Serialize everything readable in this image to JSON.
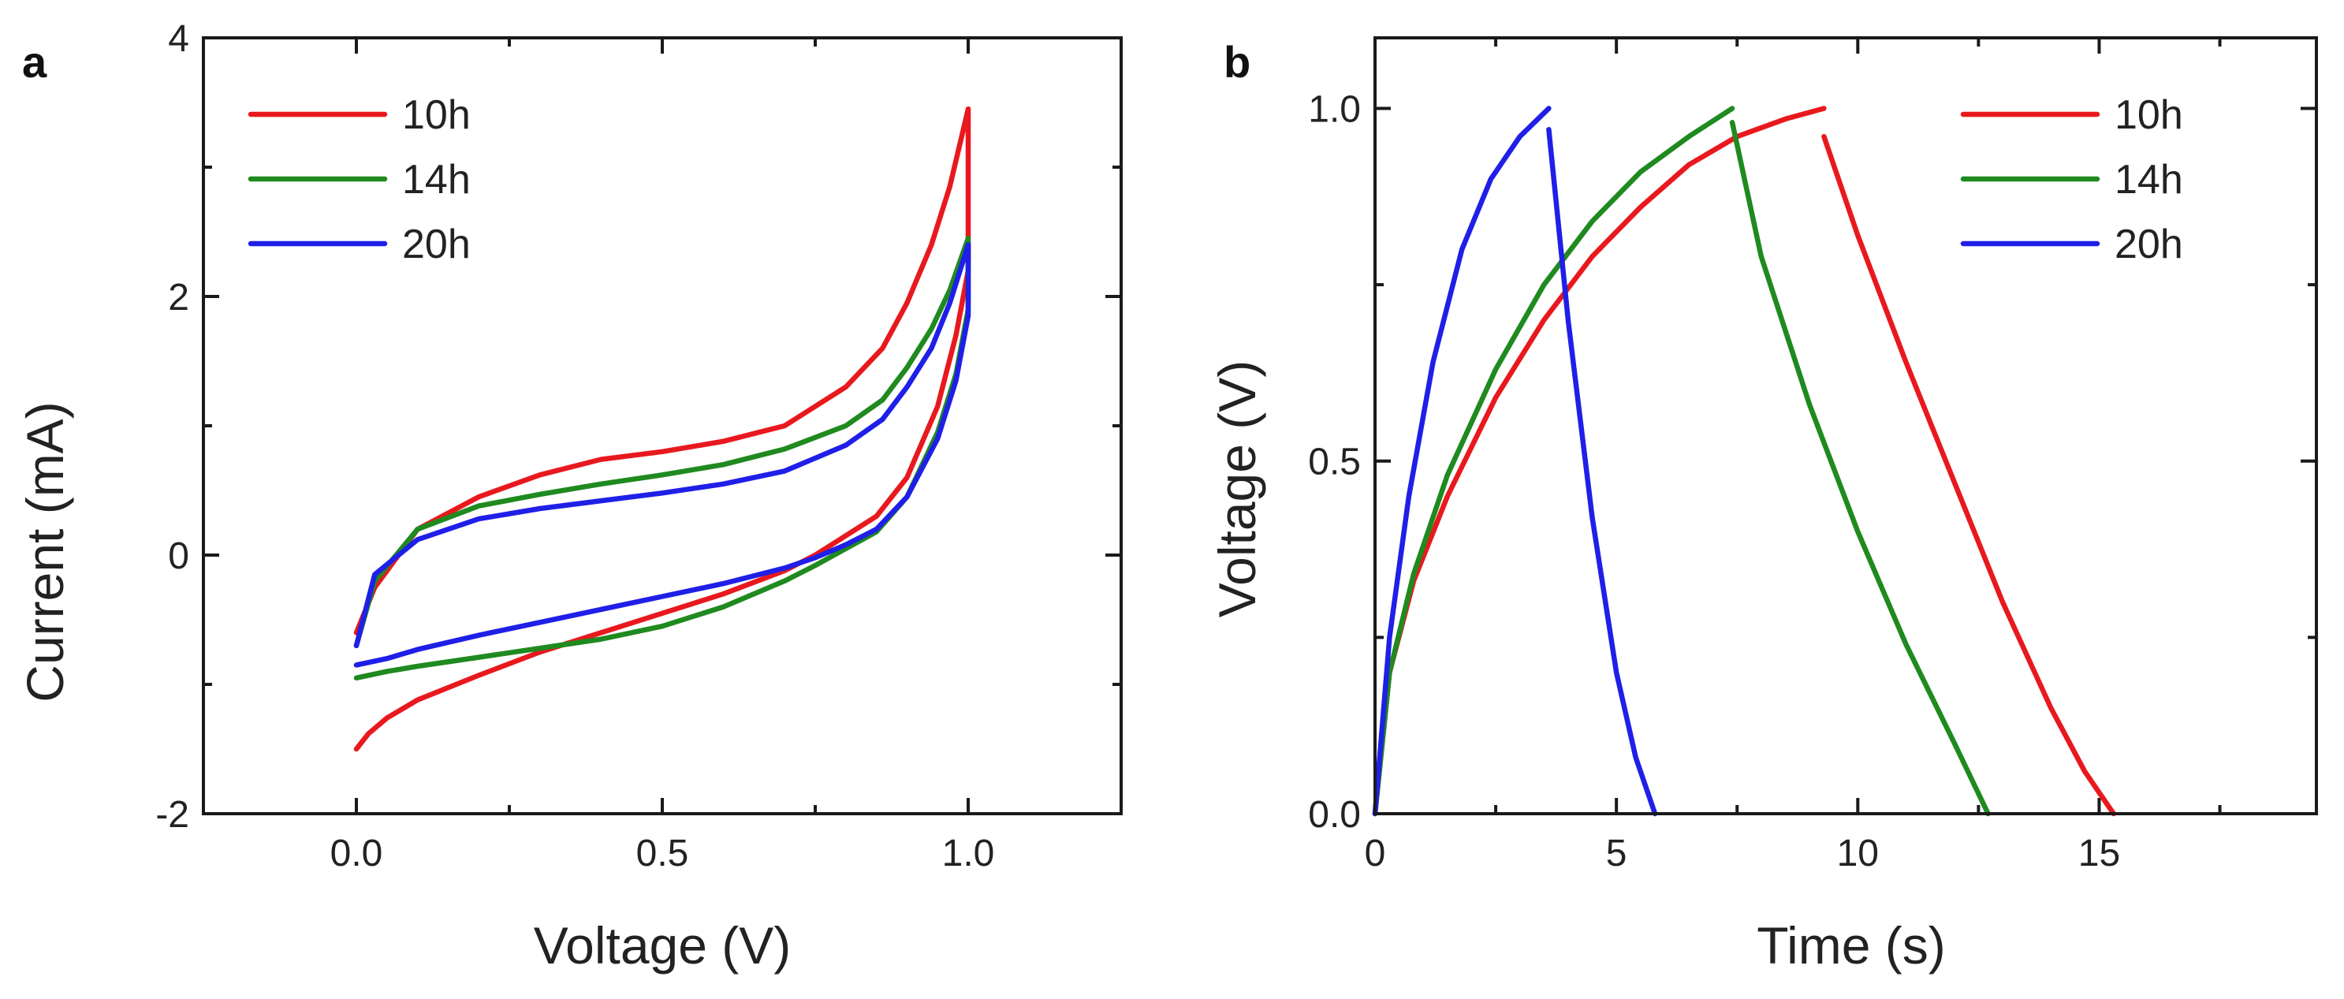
{
  "chart_data": [
    {
      "panel": "a",
      "type": "line",
      "title": "",
      "xlabel": "Voltage (V)",
      "ylabel": "Current (mA)",
      "xlim": [
        -0.25,
        1.25
      ],
      "ylim": [
        -2,
        4
      ],
      "xticks": [
        0.0,
        0.5,
        1.0
      ],
      "xtick_labels": [
        "0.0",
        "0.5",
        "1.0"
      ],
      "yticks": [
        -2,
        0,
        2,
        4
      ],
      "ytick_labels": [
        "-2",
        "0",
        "2",
        "4"
      ],
      "legend_position": "top-left",
      "series": [
        {
          "name": "10h",
          "color": "#e8191e",
          "x": [
            0.0,
            0.03,
            0.1,
            0.2,
            0.3,
            0.4,
            0.5,
            0.6,
            0.7,
            0.8,
            0.86,
            0.9,
            0.94,
            0.97,
            1.0,
            1.0,
            0.98,
            0.95,
            0.9,
            0.85,
            0.8,
            0.75,
            0.7,
            0.6,
            0.5,
            0.4,
            0.3,
            0.2,
            0.1,
            0.05,
            0.02,
            0.0
          ],
          "y": [
            -0.6,
            -0.25,
            0.2,
            0.45,
            0.62,
            0.74,
            0.8,
            0.88,
            1.0,
            1.3,
            1.6,
            1.95,
            2.4,
            2.85,
            3.45,
            2.2,
            1.7,
            1.15,
            0.6,
            0.3,
            0.15,
            0.0,
            -0.12,
            -0.3,
            -0.45,
            -0.6,
            -0.75,
            -0.93,
            -1.12,
            -1.26,
            -1.38,
            -1.5
          ]
        },
        {
          "name": "14h",
          "color": "#1f8a1f",
          "x": [
            0.0,
            0.03,
            0.1,
            0.2,
            0.3,
            0.4,
            0.5,
            0.6,
            0.7,
            0.8,
            0.86,
            0.9,
            0.94,
            0.97,
            1.0,
            1.0,
            0.98,
            0.95,
            0.9,
            0.85,
            0.8,
            0.75,
            0.7,
            0.6,
            0.5,
            0.4,
            0.3,
            0.2,
            0.1,
            0.05,
            0.0
          ],
          "y": [
            -0.7,
            -0.2,
            0.2,
            0.38,
            0.47,
            0.55,
            0.62,
            0.7,
            0.82,
            1.0,
            1.2,
            1.45,
            1.75,
            2.05,
            2.45,
            1.9,
            1.4,
            0.95,
            0.45,
            0.18,
            0.05,
            -0.08,
            -0.2,
            -0.4,
            -0.55,
            -0.65,
            -0.72,
            -0.79,
            -0.86,
            -0.9,
            -0.95
          ]
        },
        {
          "name": "20h",
          "color": "#1f1fe8",
          "x": [
            0.0,
            0.03,
            0.1,
            0.2,
            0.3,
            0.4,
            0.5,
            0.6,
            0.7,
            0.8,
            0.86,
            0.9,
            0.94,
            0.97,
            1.0,
            1.0,
            0.98,
            0.95,
            0.9,
            0.85,
            0.8,
            0.75,
            0.7,
            0.6,
            0.5,
            0.4,
            0.3,
            0.2,
            0.1,
            0.05,
            0.0
          ],
          "y": [
            -0.7,
            -0.15,
            0.12,
            0.28,
            0.36,
            0.42,
            0.48,
            0.55,
            0.65,
            0.85,
            1.05,
            1.3,
            1.6,
            1.95,
            2.4,
            1.85,
            1.35,
            0.9,
            0.45,
            0.2,
            0.08,
            -0.02,
            -0.1,
            -0.22,
            -0.32,
            -0.42,
            -0.52,
            -0.62,
            -0.73,
            -0.8,
            -0.85
          ]
        }
      ]
    },
    {
      "panel": "b",
      "type": "line",
      "title": "",
      "xlabel": "Time (s)",
      "ylabel": "Voltage (V)",
      "xlim": [
        0,
        19.5
      ],
      "ylim": [
        0.0,
        1.1
      ],
      "xticks": [
        0,
        5,
        10,
        15
      ],
      "xtick_labels": [
        "0",
        "5",
        "10",
        "15"
      ],
      "yticks": [
        0.0,
        0.5,
        1.0
      ],
      "ytick_labels": [
        "0.0",
        "0.5",
        "1.0"
      ],
      "legend_position": "top-right",
      "series": [
        {
          "name": "10h",
          "color": "#e8191e",
          "x": [
            0,
            0.3,
            0.8,
            1.5,
            2.5,
            3.5,
            4.5,
            5.5,
            6.5,
            7.5,
            8.5,
            9.3,
            null,
            9.3,
            10.0,
            11.0,
            12.0,
            13.0,
            14.0,
            14.7,
            15.3
          ],
          "y": [
            0,
            0.2,
            0.33,
            0.45,
            0.59,
            0.7,
            0.79,
            0.86,
            0.92,
            0.96,
            0.985,
            1.0,
            null,
            0.96,
            0.82,
            0.64,
            0.47,
            0.3,
            0.15,
            0.06,
            0.0
          ]
        },
        {
          "name": "14h",
          "color": "#1f8a1f",
          "x": [
            0,
            0.3,
            0.8,
            1.5,
            2.5,
            3.5,
            4.5,
            5.5,
            6.5,
            7.4,
            null,
            7.4,
            8.0,
            9.0,
            10.0,
            11.0,
            12.0,
            12.7
          ],
          "y": [
            0,
            0.2,
            0.34,
            0.48,
            0.63,
            0.75,
            0.84,
            0.91,
            0.96,
            1.0,
            null,
            0.98,
            0.79,
            0.58,
            0.4,
            0.24,
            0.1,
            0.0
          ]
        },
        {
          "name": "20h",
          "color": "#1f1fe8",
          "x": [
            0,
            0.3,
            0.7,
            1.2,
            1.8,
            2.4,
            3.0,
            3.6,
            null,
            3.6,
            4.0,
            4.5,
            5.0,
            5.4,
            5.8
          ],
          "y": [
            0,
            0.25,
            0.45,
            0.64,
            0.8,
            0.9,
            0.96,
            1.0,
            null,
            0.97,
            0.7,
            0.42,
            0.2,
            0.08,
            0.0
          ]
        }
      ]
    }
  ]
}
